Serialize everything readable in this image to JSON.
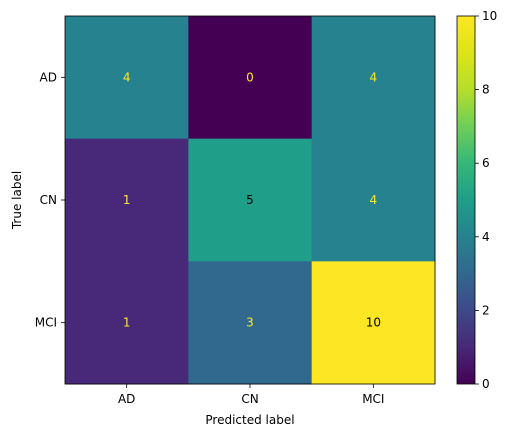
{
  "chart_data": {
    "type": "heatmap",
    "title": "",
    "xlabel": "Predicted label",
    "ylabel": "True label",
    "x_categories": [
      "AD",
      "CN",
      "MCI"
    ],
    "y_categories": [
      "AD",
      "CN",
      "MCI"
    ],
    "matrix": [
      [
        4,
        0,
        4
      ],
      [
        1,
        5,
        4
      ],
      [
        1,
        3,
        10
      ]
    ],
    "colorbar": {
      "range": [
        0,
        10
      ],
      "ticks": [
        "0",
        "2",
        "4",
        "6",
        "8",
        "10"
      ],
      "colormap": "viridis"
    },
    "grid": false
  }
}
